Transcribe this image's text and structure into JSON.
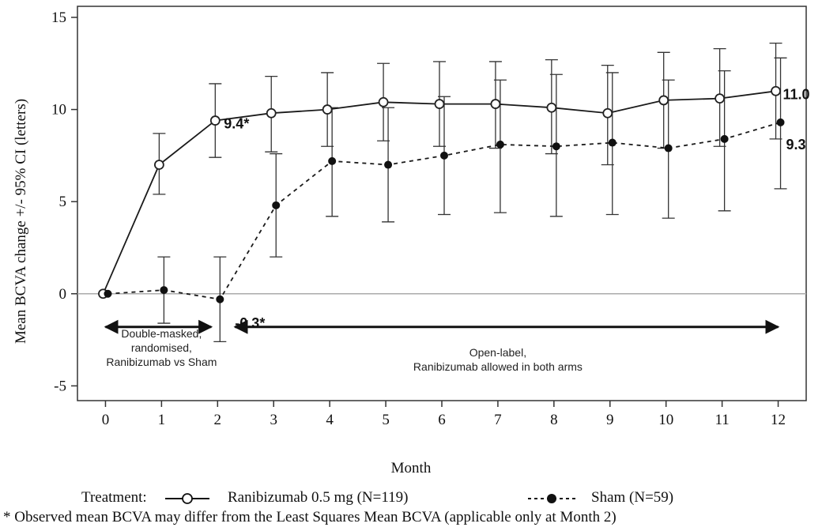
{
  "chart_data": {
    "type": "line",
    "title": "",
    "xlabel": "Month",
    "ylabel": "Mean BCVA change +/- 95% CI (letters)",
    "x": [
      0,
      1,
      2,
      3,
      4,
      5,
      6,
      7,
      8,
      9,
      10,
      11,
      12
    ],
    "xlim": [
      -0.5,
      12.5
    ],
    "ylim": [
      -5.8,
      15.6
    ],
    "yticks": [
      -5,
      0,
      5,
      10,
      15
    ],
    "ytick_labels": [
      "-5",
      "0",
      "5",
      "10",
      "15"
    ],
    "xtick_labels": [
      "0",
      "1",
      "2",
      "3",
      "4",
      "5",
      "6",
      "7",
      "8",
      "9",
      "10",
      "11",
      "12"
    ],
    "grid": false,
    "reference_line_y": 0,
    "series": [
      {
        "name": "Ranibizumab 0.5 mg (N=119)",
        "style": "solid",
        "marker": "open-circle",
        "color": "#1a1a1a",
        "values": [
          0.0,
          7.0,
          9.4,
          9.8,
          10.0,
          10.4,
          10.3,
          10.3,
          10.1,
          9.8,
          10.5,
          10.6,
          11.0
        ],
        "ci_low": [
          null,
          5.4,
          7.4,
          7.7,
          8.0,
          8.3,
          8.0,
          7.9,
          7.6,
          7.0,
          7.9,
          8.0,
          8.4
        ],
        "ci_high": [
          null,
          8.7,
          11.4,
          11.8,
          12.0,
          12.5,
          12.6,
          12.6,
          12.7,
          12.4,
          13.1,
          13.3,
          13.6
        ]
      },
      {
        "name": "Sham (N=59)",
        "style": "dashed",
        "marker": "filled-circle",
        "color": "#1a1a1a",
        "values": [
          0.0,
          0.2,
          -0.3,
          4.8,
          7.2,
          7.0,
          7.5,
          8.1,
          8.0,
          8.2,
          7.9,
          8.4,
          9.3
        ],
        "ci_low": [
          null,
          -1.6,
          -2.6,
          2.0,
          4.2,
          3.9,
          4.3,
          4.4,
          4.2,
          4.3,
          4.1,
          4.5,
          5.7
        ],
        "ci_high": [
          null,
          2.0,
          2.0,
          7.6,
          10.1,
          10.1,
          10.7,
          11.6,
          11.9,
          12.0,
          11.6,
          12.1,
          12.8
        ]
      }
    ],
    "annotations": [
      {
        "text": "9.4*",
        "x": 2,
        "y": 9.4,
        "series": "Ranibizumab 0.5 mg (N=119)"
      },
      {
        "text": "11.0",
        "x": 12,
        "y": 11.0,
        "series": "Ranibizumab 0.5 mg (N=119)"
      },
      {
        "text": "9.3",
        "x": 12,
        "y": 9.3,
        "series": "Sham (N=59)"
      },
      {
        "text": "-0.3*",
        "x": 2,
        "y": -0.3,
        "series": "Sham (N=59)"
      }
    ],
    "periods": [
      {
        "text_lines": [
          "Double-masked,",
          "randomised,",
          "Ranibizumab vs Sham"
        ],
        "x_start": 0,
        "x_end": 2
      },
      {
        "text_lines": [
          "Open-label,",
          "Ranibizumab allowed in both arms"
        ],
        "x_start": 2,
        "x_end": 12
      }
    ]
  },
  "legend": {
    "prefix": "Treatment:",
    "items": [
      {
        "label": "Ranibizumab 0.5 mg (N=119)",
        "marker": "open-circle",
        "line": "solid"
      },
      {
        "label": "Sham (N=59)",
        "marker": "filled-circle",
        "line": "dashed"
      }
    ]
  },
  "footnote": "* Observed mean BCVA may differ from the Least Squares Mean BCVA (applicable only at Month 2)"
}
